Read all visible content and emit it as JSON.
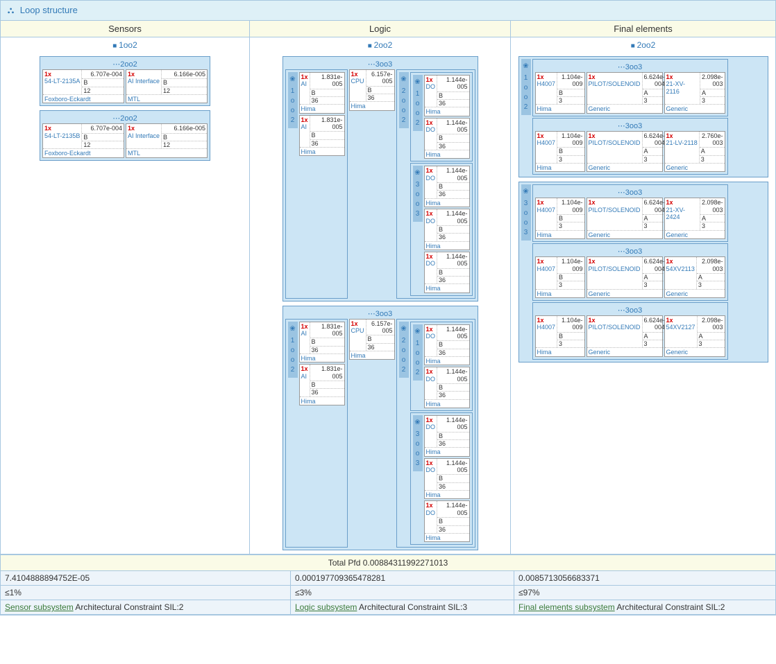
{
  "title": "Loop structure",
  "columns": [
    "Sensors",
    "Logic",
    "Final elements"
  ],
  "topVotes": [
    "1oo2",
    "2oo2",
    "2oo2"
  ],
  "sensors": {
    "groups": [
      {
        "header": "⋯2oo2",
        "devices": [
          {
            "mult": "1x",
            "name": "54-LT-2135A",
            "pfd": "6.707e-004",
            "b": "B",
            "n": "12",
            "vendor": "Foxboro-Eckardt",
            "w": "w-sensor"
          },
          {
            "mult": "1x",
            "name": "AI Interface",
            "pfd": "6.166e-005",
            "b": "B",
            "n": "12",
            "vendor": "MTL",
            "w": "w-sensor"
          }
        ]
      },
      {
        "header": "⋯2oo2",
        "devices": [
          {
            "mult": "1x",
            "name": "54-LT-2135B",
            "pfd": "6.707e-004",
            "b": "B",
            "n": "12",
            "vendor": "Foxboro-Eckardt",
            "w": "w-sensor"
          },
          {
            "mult": "1x",
            "name": "AI Interface",
            "pfd": "6.166e-005",
            "b": "B",
            "n": "12",
            "vendor": "MTL",
            "w": "w-sensor"
          }
        ]
      }
    ]
  },
  "logicBlocks": [
    {
      "header": "⋯3oo3",
      "left": {
        "label": "1oo2",
        "devices": [
          {
            "mult": "1x",
            "name": "AI",
            "pfd": "1.831e-005",
            "b": "B",
            "n": "36",
            "vendor": "Hima",
            "w": "w-logic"
          },
          {
            "mult": "1x",
            "name": "AI",
            "pfd": "1.831e-005",
            "b": "B",
            "n": "36",
            "vendor": "Hima",
            "w": "w-logic"
          }
        ]
      },
      "center": [
        {
          "mult": "1x",
          "name": "CPU",
          "pfd": "6.157e-005",
          "b": "B",
          "n": "36",
          "vendor": "Hima",
          "w": "w-logic"
        }
      ],
      "right": {
        "label": "2oo2",
        "inner": [
          {
            "label": "1oo2",
            "devices": [
              {
                "mult": "1x",
                "name": "DO",
                "pfd": "1.144e-005",
                "b": "B",
                "n": "36",
                "vendor": "Hima",
                "w": "w-logic"
              },
              {
                "mult": "1x",
                "name": "DO",
                "pfd": "1.144e-005",
                "b": "B",
                "n": "36",
                "vendor": "Hima",
                "w": "w-logic"
              }
            ]
          },
          {
            "label": "3oo3",
            "devices": [
              {
                "mult": "1x",
                "name": "DO",
                "pfd": "1.144e-005",
                "b": "B",
                "n": "36",
                "vendor": "Hima",
                "w": "w-logic"
              },
              {
                "mult": "1x",
                "name": "DO",
                "pfd": "1.144e-005",
                "b": "B",
                "n": "36",
                "vendor": "Hima",
                "w": "w-logic"
              },
              {
                "mult": "1x",
                "name": "DO",
                "pfd": "1.144e-005",
                "b": "B",
                "n": "36",
                "vendor": "Hima",
                "w": "w-logic"
              }
            ]
          }
        ]
      }
    },
    {
      "header": "⋯3oo3",
      "left": {
        "label": "1oo2",
        "devices": [
          {
            "mult": "1x",
            "name": "AI",
            "pfd": "1.831e-005",
            "b": "B",
            "n": "36",
            "vendor": "Hima",
            "w": "w-logic"
          },
          {
            "mult": "1x",
            "name": "AI",
            "pfd": "1.831e-005",
            "b": "B",
            "n": "36",
            "vendor": "Hima",
            "w": "w-logic"
          }
        ]
      },
      "center": [
        {
          "mult": "1x",
          "name": "CPU",
          "pfd": "6.157e-005",
          "b": "B",
          "n": "36",
          "vendor": "Hima",
          "w": "w-logic"
        }
      ],
      "right": {
        "label": "2oo2",
        "inner": [
          {
            "label": "1oo2",
            "devices": [
              {
                "mult": "1x",
                "name": "DO",
                "pfd": "1.144e-005",
                "b": "B",
                "n": "36",
                "vendor": "Hima",
                "w": "w-logic"
              },
              {
                "mult": "1x",
                "name": "DO",
                "pfd": "1.144e-005",
                "b": "B",
                "n": "36",
                "vendor": "Hima",
                "w": "w-logic"
              }
            ]
          },
          {
            "label": "3oo3",
            "devices": [
              {
                "mult": "1x",
                "name": "DO",
                "pfd": "1.144e-005",
                "b": "B",
                "n": "36",
                "vendor": "Hima",
                "w": "w-logic"
              },
              {
                "mult": "1x",
                "name": "DO",
                "pfd": "1.144e-005",
                "b": "B",
                "n": "36",
                "vendor": "Hima",
                "w": "w-logic"
              },
              {
                "mult": "1x",
                "name": "DO",
                "pfd": "1.144e-005",
                "b": "B",
                "n": "36",
                "vendor": "Hima",
                "w": "w-logic"
              }
            ]
          }
        ]
      }
    }
  ],
  "finalElements": {
    "outerGroups": [
      {
        "label": "1oo2",
        "triples": [
          {
            "header": "⋯3oo3",
            "devices": [
              {
                "mult": "1x",
                "name": "H4007",
                "pfd": "1.104e-009",
                "b": "B",
                "n": "3",
                "vendor": "Hima",
                "w": "w-fe-s"
              },
              {
                "mult": "1x",
                "name": "PILOT/SOLENOID",
                "pfd": "6.624e-004",
                "b": "A",
                "n": "3",
                "vendor": "Generic",
                "w": "w-fe-m"
              },
              {
                "mult": "1x",
                "name": "21-XV-2116",
                "pfd": "2.098e-003",
                "b": "A",
                "n": "3",
                "vendor": "Generic",
                "w": "w-fe-e"
              }
            ]
          },
          {
            "header": "⋯3oo3",
            "devices": [
              {
                "mult": "1x",
                "name": "H4007",
                "pfd": "1.104e-009",
                "b": "B",
                "n": "3",
                "vendor": "Hima",
                "w": "w-fe-s"
              },
              {
                "mult": "1x",
                "name": "PILOT/SOLENOID",
                "pfd": "6.624e-004",
                "b": "A",
                "n": "3",
                "vendor": "Generic",
                "w": "w-fe-m"
              },
              {
                "mult": "1x",
                "name": "21-LV-2118",
                "pfd": "2.760e-003",
                "b": "A",
                "n": "3",
                "vendor": "Generic",
                "w": "w-fe-e"
              }
            ]
          }
        ]
      },
      {
        "label": "3oo3",
        "triples": [
          {
            "header": "⋯3oo3",
            "devices": [
              {
                "mult": "1x",
                "name": "H4007",
                "pfd": "1.104e-009",
                "b": "B",
                "n": "3",
                "vendor": "Hima",
                "w": "w-fe-s"
              },
              {
                "mult": "1x",
                "name": "PILOT/SOLENOID",
                "pfd": "6.624e-004",
                "b": "A",
                "n": "3",
                "vendor": "Generic",
                "w": "w-fe-m"
              },
              {
                "mult": "1x",
                "name": "21-XV-2424",
                "pfd": "2.098e-003",
                "b": "A",
                "n": "3",
                "vendor": "Generic",
                "w": "w-fe-e"
              }
            ]
          },
          {
            "header": "⋯3oo3",
            "devices": [
              {
                "mult": "1x",
                "name": "H4007",
                "pfd": "1.104e-009",
                "b": "B",
                "n": "3",
                "vendor": "Hima",
                "w": "w-fe-s"
              },
              {
                "mult": "1x",
                "name": "PILOT/SOLENOID",
                "pfd": "6.624e-004",
                "b": "A",
                "n": "3",
                "vendor": "Generic",
                "w": "w-fe-m"
              },
              {
                "mult": "1x",
                "name": "54XV2113",
                "pfd": "2.098e-003",
                "b": "A",
                "n": "3",
                "vendor": "Generic",
                "w": "w-fe-e"
              }
            ]
          },
          {
            "header": "⋯3oo3",
            "devices": [
              {
                "mult": "1x",
                "name": "H4007",
                "pfd": "1.104e-009",
                "b": "B",
                "n": "3",
                "vendor": "Hima",
                "w": "w-fe-s"
              },
              {
                "mult": "1x",
                "name": "PILOT/SOLENOID",
                "pfd": "6.624e-004",
                "b": "A",
                "n": "3",
                "vendor": "Generic",
                "w": "w-fe-m"
              },
              {
                "mult": "1x",
                "name": "54XV2127",
                "pfd": "2.098e-003",
                "b": "A",
                "n": "3",
                "vendor": "Generic",
                "w": "w-fe-e"
              }
            ]
          }
        ]
      }
    ]
  },
  "totalPfd": "Total Pfd 0.00884311992271013",
  "footer": {
    "pfds": [
      "7.4104888894752E-05",
      "0.000197709365478281",
      "0.0085713056683371"
    ],
    "pct": [
      "≤1%",
      "≤3%",
      "≤97%"
    ],
    "arch": [
      {
        "link": "Sensor subsystem",
        "text": " Architectural Constraint SIL:2"
      },
      {
        "link": "Logic subsystem",
        "text": " Architectural Constraint SIL:3"
      },
      {
        "link": "Final elements subsystem",
        "text": " Architectural Constraint SIL:2"
      }
    ]
  }
}
